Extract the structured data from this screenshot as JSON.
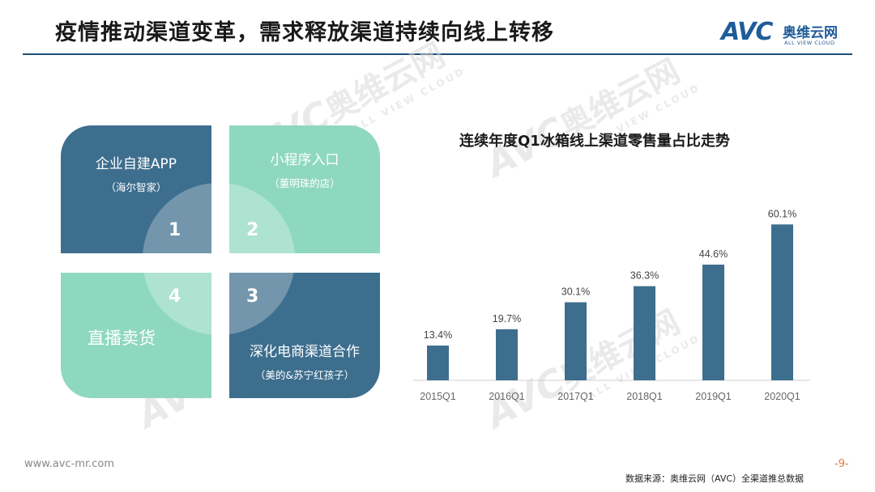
{
  "header": {
    "title": "疫情推动渠道变革，需求释放渠道持续向线上转移",
    "logo_mark": "AVC",
    "logo_cn": "奥维云网",
    "logo_en": "ALL VIEW CLOUD"
  },
  "watermark": {
    "mark": "AVC",
    "cn": "奥维云网",
    "en": "ALL VIEW CLOUD"
  },
  "quadrants": [
    {
      "num": "1",
      "label": "企业自建APP",
      "sub": "（海尔智家）"
    },
    {
      "num": "2",
      "label": "小程序入口",
      "sub": "（董明珠的店）"
    },
    {
      "num": "3",
      "label": "深化电商渠道合作",
      "sub": "（美的&苏宁红孩子）"
    },
    {
      "num": "4",
      "label": "直播卖货",
      "sub": ""
    }
  ],
  "chart_data": {
    "type": "bar",
    "title": "连续年度Q1冰箱线上渠道零售量占比走势",
    "categories": [
      "2015Q1",
      "2016Q1",
      "2017Q1",
      "2018Q1",
      "2019Q1",
      "2020Q1"
    ],
    "values": [
      13.4,
      19.7,
      30.1,
      36.3,
      44.6,
      60.1
    ],
    "value_labels": [
      "13.4%",
      "19.7%",
      "30.1%",
      "36.3%",
      "44.6%",
      "60.1%"
    ],
    "ylim": [
      0,
      70
    ],
    "color": "#3d6e8e",
    "grid": false,
    "xlabel": "",
    "ylabel": ""
  },
  "footer": {
    "url": "www.avc-mr.com",
    "page": "-9-",
    "source": "数据来源：奥维云网（AVC）全渠道推总数据"
  },
  "colors": {
    "dark": "#3d6e8e",
    "light": "#8fd8c0",
    "accent_rule": "#1f4e79"
  }
}
